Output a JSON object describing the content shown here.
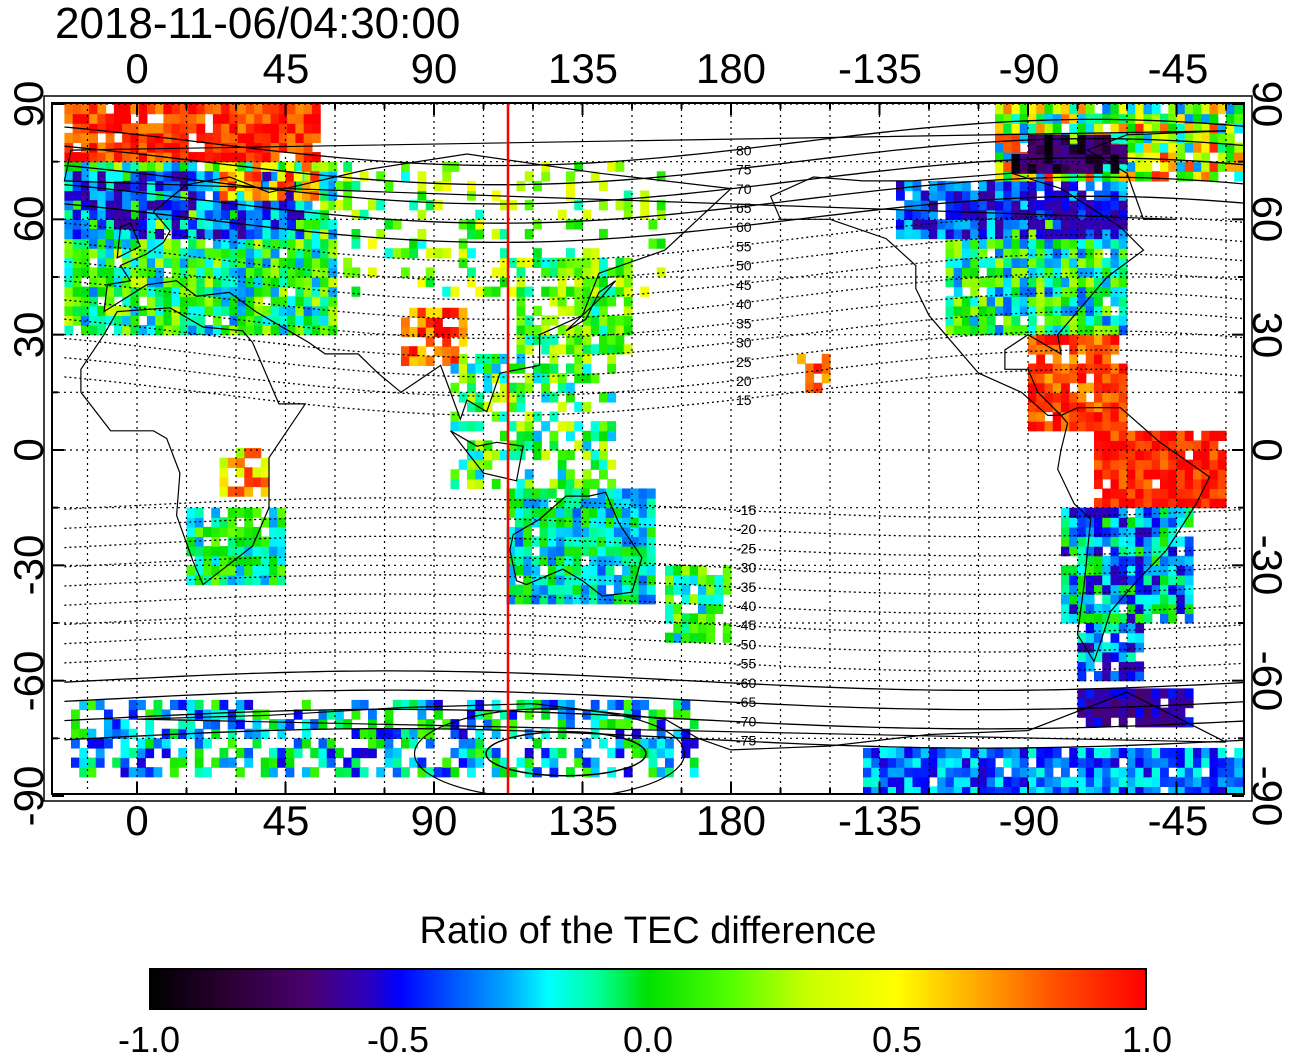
{
  "timestamp": "2018-11-06/04:30:00",
  "lon_ticks": [
    "0",
    "45",
    "90",
    "135",
    "180",
    "-135",
    "-90",
    "-45"
  ],
  "lat_ticks": [
    "90",
    "60",
    "30",
    "0",
    "-30",
    "-60",
    "-90"
  ],
  "contour_labels": [
    "80",
    "75",
    "70",
    "65",
    "60",
    "55",
    "50",
    "45",
    "40",
    "35",
    "30",
    "25",
    "20",
    "15",
    "-15",
    "-20",
    "-25",
    "-30",
    "-35",
    "-40",
    "-45",
    "-50",
    "-55",
    "-60",
    "-65",
    "-70",
    "-75"
  ],
  "colorbar": {
    "title": "Ratio of the TEC difference",
    "ticks": [
      "-1.0",
      "-0.5",
      "0.0",
      "0.5",
      "1.0"
    ],
    "range": [
      -1.0,
      1.0
    ]
  },
  "colors": {
    "subsolar_line": "#ff0000",
    "land_outline": "#000000"
  }
}
